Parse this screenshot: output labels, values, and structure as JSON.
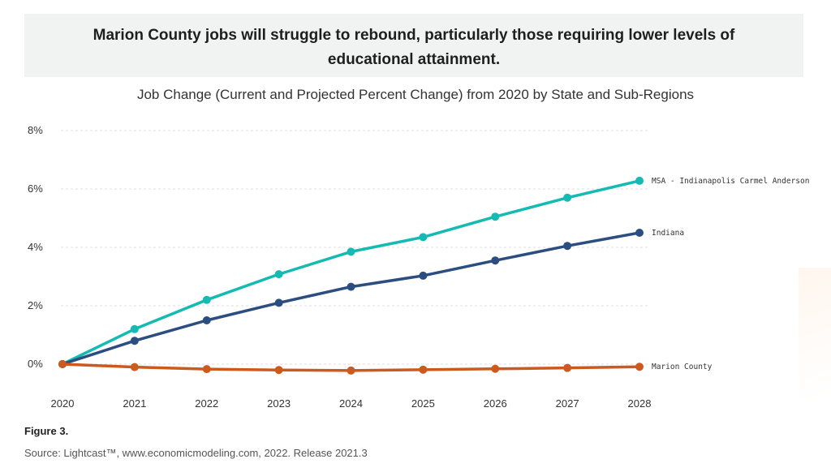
{
  "headline": "Marion County jobs will struggle to rebound, particularly those requiring lower levels of educational attainment.",
  "figure_label": "Figure 3.",
  "source": "Source: Lightcast™, www.economicmodeling.com, 2022. Release 2021.3",
  "chart_data": {
    "type": "line",
    "title": "Job Change (Current and Projected Percent Change) from 2020 by State and Sub-Regions",
    "xlabel": "",
    "ylabel": "",
    "x": [
      "2020",
      "2021",
      "2022",
      "2023",
      "2024",
      "2025",
      "2026",
      "2027",
      "2028"
    ],
    "y_ticks": [
      "0%",
      "2%",
      "4%",
      "6%",
      "8%"
    ],
    "ylim": [
      0,
      8
    ],
    "grid": true,
    "legend": "inline labels at line ends",
    "series": [
      {
        "name": "MSA - Indianapolis Carmel Anderson",
        "color": "#15bab3",
        "values": [
          0,
          1.2,
          2.2,
          3.08,
          3.85,
          4.35,
          5.05,
          5.7,
          6.28
        ]
      },
      {
        "name": "Indiana",
        "color": "#2b4d80",
        "values": [
          0,
          0.8,
          1.5,
          2.1,
          2.65,
          3.03,
          3.55,
          4.05,
          4.5
        ]
      },
      {
        "name": "Marion County",
        "color": "#cc5a1e",
        "values": [
          0,
          -0.1,
          -0.17,
          -0.2,
          -0.22,
          -0.19,
          -0.16,
          -0.13,
          -0.09
        ]
      }
    ]
  }
}
